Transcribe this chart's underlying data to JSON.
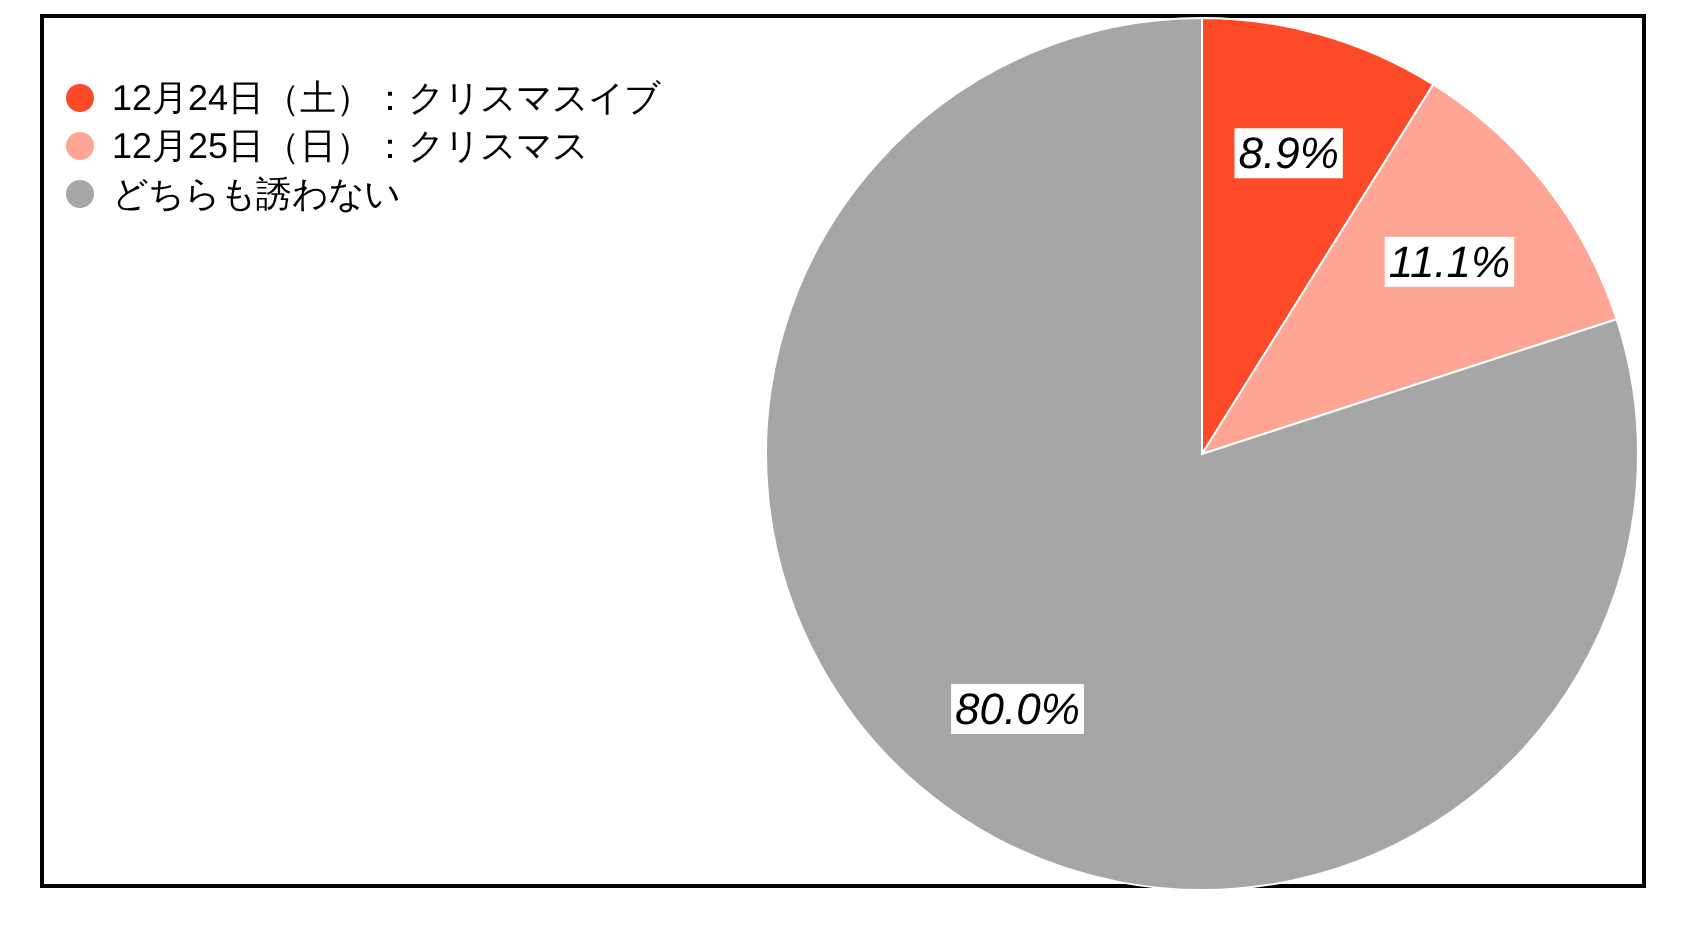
{
  "chart_data": {
    "type": "pie",
    "categories": [
      "12月24日（土）：クリスマスイブ",
      "12月25日（日）：クリスマス",
      "どちらも誘わない"
    ],
    "values": [
      8.9,
      11.1,
      80.0
    ],
    "colors": [
      "#ff4a2a",
      "#ffa593",
      "#a6a6a6"
    ],
    "value_labels": [
      "8.9%",
      "11.1%",
      "80.0%"
    ],
    "legend": "top left"
  }
}
